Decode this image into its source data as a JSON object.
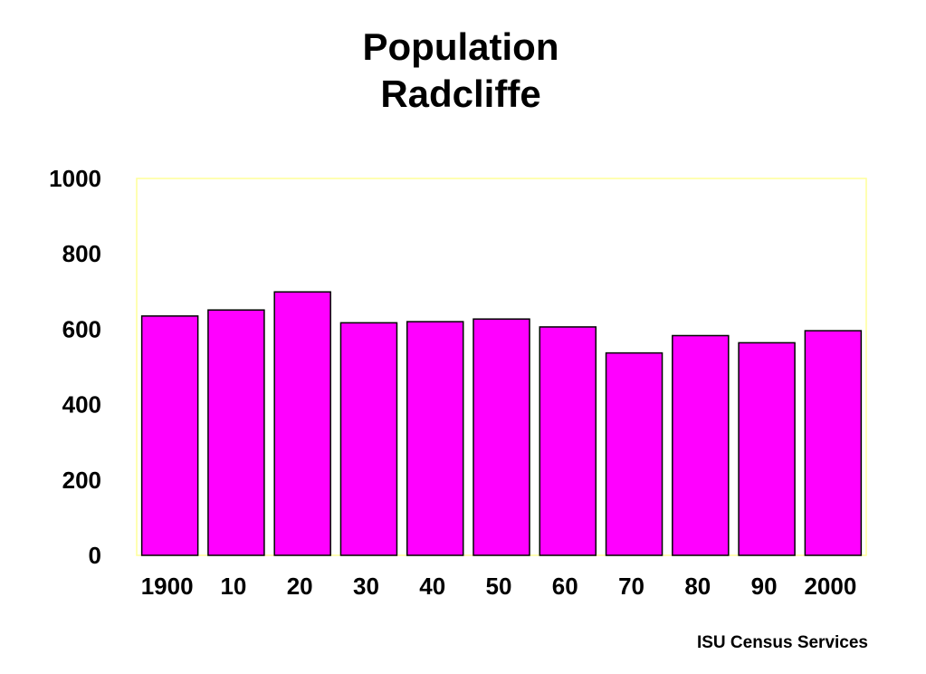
{
  "chart_data": {
    "type": "bar",
    "title": [
      "Population",
      "Radcliffe"
    ],
    "categories": [
      "1900",
      "10",
      "20",
      "30",
      "40",
      "50",
      "60",
      "70",
      "80",
      "90",
      "2000"
    ],
    "values": [
      635,
      651,
      699,
      617,
      620,
      627,
      606,
      537,
      583,
      564,
      596
    ],
    "ylim": [
      0,
      1000
    ],
    "yticks": [
      0,
      200,
      400,
      600,
      800,
      1000
    ],
    "xlabel": "",
    "ylabel": "",
    "grid": false,
    "bar_color": "#ff00ff",
    "plot_border_color": "#ffff99"
  },
  "footer": "ISU Census Services"
}
